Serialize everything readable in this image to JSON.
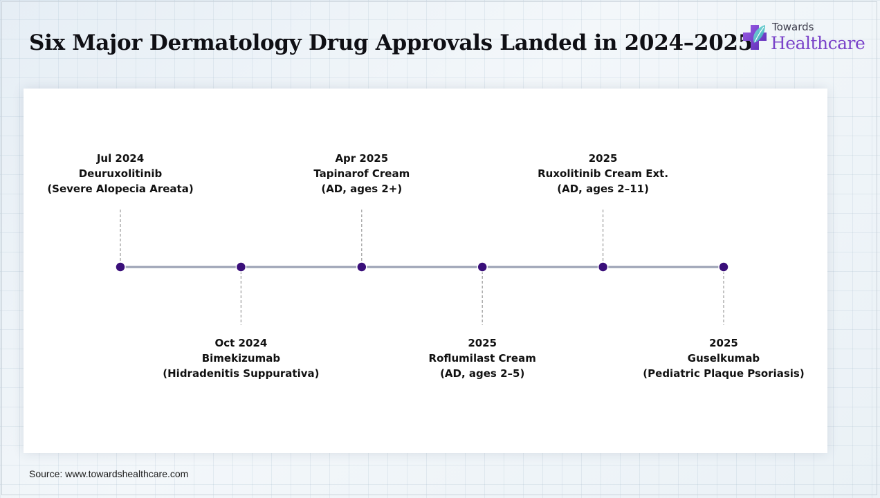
{
  "header": {
    "title": "Six Major Dermatology Drug Approvals Landed in 2024–2025"
  },
  "logo": {
    "top_text": "Towards",
    "main_text": "Healthcare",
    "accent_color": "#7a43c9",
    "icon": "medical-cross-leaf-icon"
  },
  "timeline": {
    "line_color": "#9aa0b3",
    "dot_color": "#3a0f7a",
    "events": [
      {
        "date": "Jul 2024",
        "name": "Deuruxolitinib",
        "detail": "(Severe Alopecia Areata)",
        "position": "above"
      },
      {
        "date": "Oct 2024",
        "name": "Bimekizumab",
        "detail": "(Hidradenitis Suppurativa)",
        "position": "below"
      },
      {
        "date": "Apr 2025",
        "name": "Tapinarof Cream",
        "detail": "(AD, ages 2+)",
        "position": "above"
      },
      {
        "date": "2025",
        "name": "Roflumilast Cream",
        "detail": "(AD, ages 2–5)",
        "position": "below"
      },
      {
        "date": "2025",
        "name": "Ruxolitinib Cream Ext.",
        "detail": "(AD, ages 2–11)",
        "position": "above"
      },
      {
        "date": "2025",
        "name": "Guselkumab",
        "detail": "(Pediatric Plaque Psoriasis)",
        "position": "below"
      }
    ]
  },
  "footer": {
    "source": "Source: www.towardshealthcare.com"
  }
}
